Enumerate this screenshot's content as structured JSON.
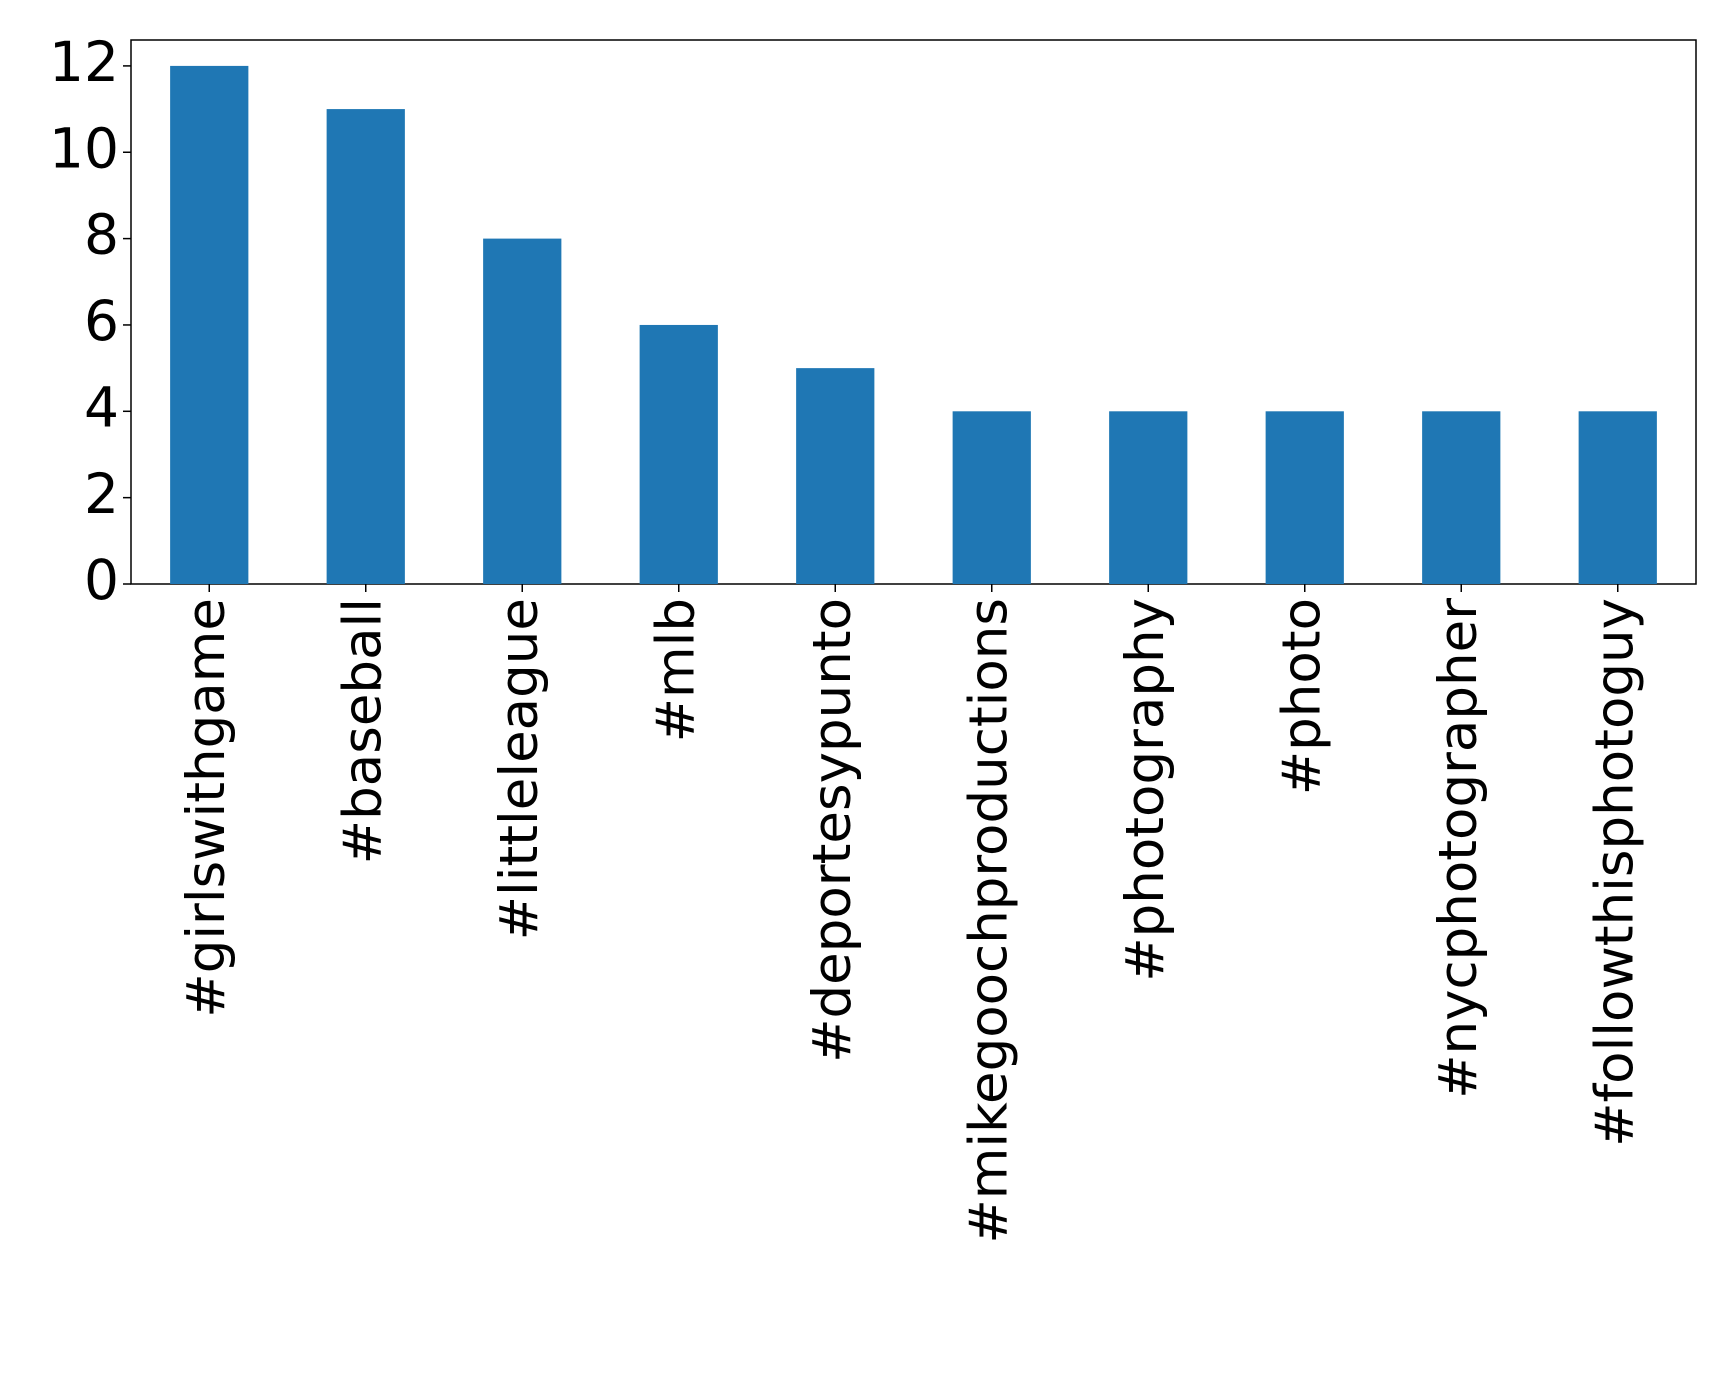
{
  "chart_data": {
    "type": "bar",
    "categories": [
      "#girlswithgame",
      "#baseball",
      "#littleleague",
      "#mlb",
      "#deportesypunto",
      "#mikegoochproductions",
      "#photography",
      "#photo",
      "#nycphotographer",
      "#followthisphotoguy"
    ],
    "values": [
      12,
      11,
      8,
      6,
      5,
      4,
      4,
      4,
      4,
      4
    ],
    "color": "#1f77b4",
    "ylim": [
      0,
      12.6
    ],
    "yticks": [
      0,
      2,
      4,
      6,
      8,
      10,
      12
    ],
    "grid": false
  }
}
